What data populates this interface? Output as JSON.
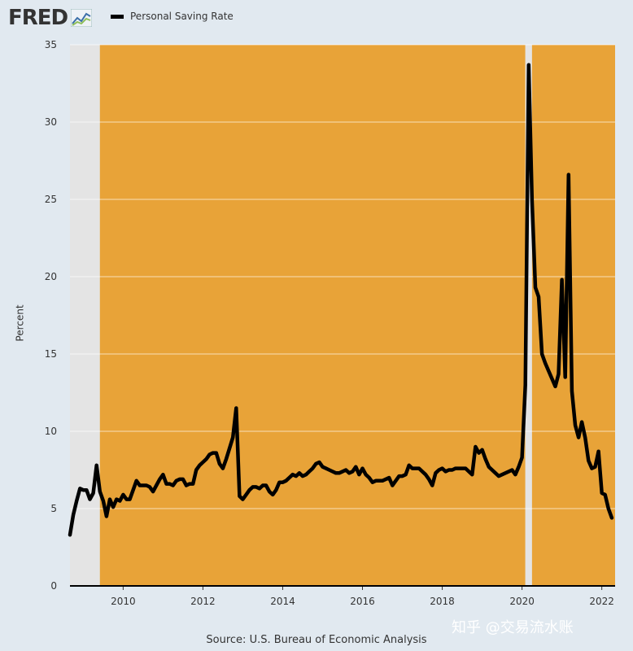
{
  "header": {
    "logo_text": "FRED",
    "legend_label": "Personal Saving Rate"
  },
  "footer": {
    "source": "Source: U.S. Bureau of Economic Analysis"
  },
  "watermark": "知乎 @交易流水账",
  "colors": {
    "background": "#e1e9f0",
    "expansion_shade": "#e8a338",
    "recession_shade": "#e4e4e4",
    "line": "#000000"
  },
  "chart_data": {
    "type": "line",
    "title": "",
    "xlabel": "",
    "ylabel": "Percent",
    "ylim": [
      0,
      35
    ],
    "xlim": [
      "2008-09",
      "2022-05"
    ],
    "yticks": [
      0,
      5,
      10,
      15,
      20,
      25,
      30,
      35
    ],
    "xticks": [
      "2010",
      "2012",
      "2014",
      "2016",
      "2018",
      "2020",
      "2022"
    ],
    "grid": true,
    "legend": "top-left",
    "shaded_periods": [
      {
        "type": "recession",
        "start": "2008-09",
        "end": "2009-06"
      },
      {
        "type": "expansion",
        "start": "2009-06",
        "end": "2020-02"
      },
      {
        "type": "recession",
        "start": "2020-02",
        "end": "2020-04"
      },
      {
        "type": "expansion",
        "start": "2020-04",
        "end": "2022-05"
      }
    ],
    "series": [
      {
        "name": "Personal Saving Rate",
        "x": [
          "2008-09",
          "2008-10",
          "2008-11",
          "2008-12",
          "2009-01",
          "2009-02",
          "2009-03",
          "2009-04",
          "2009-05",
          "2009-06",
          "2009-07",
          "2009-08",
          "2009-09",
          "2009-10",
          "2009-11",
          "2009-12",
          "2010-01",
          "2010-02",
          "2010-03",
          "2010-04",
          "2010-05",
          "2010-06",
          "2010-07",
          "2010-08",
          "2010-09",
          "2010-10",
          "2010-11",
          "2010-12",
          "2011-01",
          "2011-02",
          "2011-03",
          "2011-04",
          "2011-05",
          "2011-06",
          "2011-07",
          "2011-08",
          "2011-09",
          "2011-10",
          "2011-11",
          "2011-12",
          "2012-01",
          "2012-02",
          "2012-03",
          "2012-04",
          "2012-05",
          "2012-06",
          "2012-07",
          "2012-08",
          "2012-09",
          "2012-10",
          "2012-11",
          "2012-12",
          "2013-01",
          "2013-02",
          "2013-03",
          "2013-04",
          "2013-05",
          "2013-06",
          "2013-07",
          "2013-08",
          "2013-09",
          "2013-10",
          "2013-11",
          "2013-12",
          "2014-01",
          "2014-02",
          "2014-03",
          "2014-04",
          "2014-05",
          "2014-06",
          "2014-07",
          "2014-08",
          "2014-09",
          "2014-10",
          "2014-11",
          "2014-12",
          "2015-01",
          "2015-02",
          "2015-03",
          "2015-04",
          "2015-05",
          "2015-06",
          "2015-07",
          "2015-08",
          "2015-09",
          "2015-10",
          "2015-11",
          "2015-12",
          "2016-01",
          "2016-02",
          "2016-03",
          "2016-04",
          "2016-05",
          "2016-06",
          "2016-07",
          "2016-08",
          "2016-09",
          "2016-10",
          "2016-11",
          "2016-12",
          "2017-01",
          "2017-02",
          "2017-03",
          "2017-04",
          "2017-05",
          "2017-06",
          "2017-07",
          "2017-08",
          "2017-09",
          "2017-10",
          "2017-11",
          "2017-12",
          "2018-01",
          "2018-02",
          "2018-03",
          "2018-04",
          "2018-05",
          "2018-06",
          "2018-07",
          "2018-08",
          "2018-09",
          "2018-10",
          "2018-11",
          "2018-12",
          "2019-01",
          "2019-02",
          "2019-03",
          "2019-04",
          "2019-05",
          "2019-06",
          "2019-07",
          "2019-08",
          "2019-09",
          "2019-10",
          "2019-11",
          "2019-12",
          "2020-01",
          "2020-02",
          "2020-03",
          "2020-04",
          "2020-05",
          "2020-06",
          "2020-07",
          "2020-08",
          "2020-09",
          "2020-10",
          "2020-11",
          "2020-12",
          "2021-01",
          "2021-02",
          "2021-03",
          "2021-04",
          "2021-05",
          "2021-06",
          "2021-07",
          "2021-08",
          "2021-09",
          "2021-10",
          "2021-11",
          "2021-12",
          "2022-01",
          "2022-02",
          "2022-03",
          "2022-04"
        ],
        "values": [
          3.3,
          4.6,
          5.5,
          6.3,
          6.2,
          6.2,
          5.6,
          6.0,
          7.8,
          6.1,
          5.5,
          4.5,
          5.6,
          5.1,
          5.6,
          5.5,
          5.9,
          5.6,
          5.6,
          6.2,
          6.8,
          6.5,
          6.5,
          6.5,
          6.4,
          6.1,
          6.5,
          6.9,
          7.2,
          6.6,
          6.6,
          6.5,
          6.8,
          6.9,
          6.9,
          6.5,
          6.6,
          6.6,
          7.5,
          7.8,
          8.0,
          8.2,
          8.5,
          8.6,
          8.6,
          7.9,
          7.6,
          8.2,
          8.9,
          9.6,
          11.5,
          5.8,
          5.6,
          5.9,
          6.2,
          6.4,
          6.4,
          6.3,
          6.5,
          6.5,
          6.1,
          5.9,
          6.2,
          6.7,
          6.7,
          6.8,
          7.0,
          7.2,
          7.1,
          7.3,
          7.1,
          7.2,
          7.4,
          7.6,
          7.9,
          8.0,
          7.7,
          7.6,
          7.5,
          7.4,
          7.3,
          7.3,
          7.4,
          7.5,
          7.3,
          7.4,
          7.7,
          7.2,
          7.6,
          7.2,
          7.0,
          6.7,
          6.8,
          6.8,
          6.8,
          6.9,
          7.0,
          6.5,
          6.8,
          7.1,
          7.1,
          7.2,
          7.8,
          7.6,
          7.6,
          7.6,
          7.4,
          7.2,
          6.9,
          6.5,
          7.3,
          7.5,
          7.6,
          7.4,
          7.5,
          7.5,
          7.6,
          7.6,
          7.6,
          7.6,
          7.4,
          7.2,
          9.0,
          8.6,
          8.8,
          8.2,
          7.7,
          7.5,
          7.3,
          7.1,
          7.2,
          7.3,
          7.4,
          7.5,
          7.2,
          7.7,
          8.3,
          13.0,
          33.7,
          24.9,
          19.3,
          18.7,
          15.0,
          14.4,
          13.9,
          13.4,
          12.9,
          13.7,
          19.8,
          13.5,
          26.6,
          12.6,
          10.4,
          9.6,
          10.6,
          9.6,
          8.1,
          7.6,
          7.7,
          8.7,
          6.0,
          5.9,
          5.0,
          4.4
        ]
      }
    ]
  }
}
